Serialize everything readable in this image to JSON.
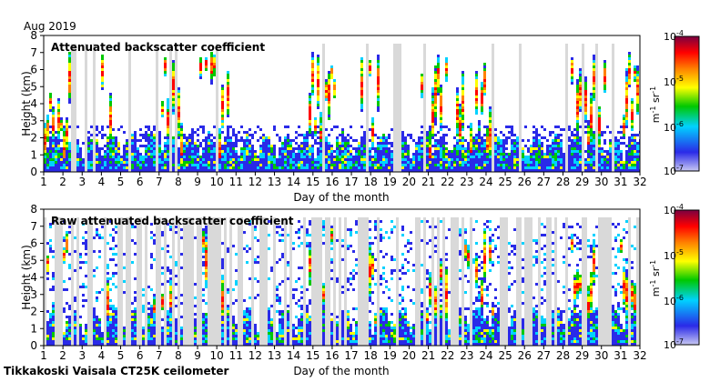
{
  "period_label": "Aug 2019",
  "footer": "Tikkakoski Vaisala CT25K ceilometer",
  "colors": {
    "no_data": "#d9d9d9",
    "colormap": [
      "#c8c8f2",
      "#2a2ae8",
      "#00d2ff",
      "#00c800",
      "#ffff00",
      "#ff8000",
      "#ff0000",
      "#7a0040"
    ]
  },
  "chart_data": [
    {
      "type": "heatmap",
      "title": "Attenuated backscatter coefficient",
      "xlabel": "Day of the month",
      "ylabel": "Height (km)",
      "x_ticks": [
        "1",
        "2",
        "3",
        "4",
        "5",
        "6",
        "7",
        "8",
        "9",
        "10",
        "11",
        "12",
        "13",
        "14",
        "15",
        "16",
        "17",
        "18",
        "19",
        "20",
        "21",
        "22",
        "23",
        "24",
        "25",
        "26",
        "27",
        "28",
        "29",
        "30",
        "31",
        "32"
      ],
      "y_ticks": [
        "0",
        "1",
        "2",
        "3",
        "4",
        "5",
        "6",
        "7",
        "8"
      ],
      "xlim": [
        1,
        32
      ],
      "ylim": [
        0,
        8
      ],
      "colorbar": {
        "scale": "log",
        "range": [
          1e-07,
          0.0001
        ],
        "tick_labels": [
          "10^-7",
          "10^-6",
          "10^-5",
          "10^-4"
        ],
        "unit_label": "m^-1 sr^-1"
      }
    },
    {
      "type": "heatmap",
      "title": "Raw attenuated backscatter coefficient",
      "xlabel": "Day of the month",
      "ylabel": "Height (km)",
      "x_ticks": [
        "1",
        "2",
        "3",
        "4",
        "5",
        "6",
        "7",
        "8",
        "9",
        "10",
        "11",
        "12",
        "13",
        "14",
        "15",
        "16",
        "17",
        "18",
        "19",
        "20",
        "21",
        "22",
        "23",
        "24",
        "25",
        "26",
        "27",
        "28",
        "29",
        "30",
        "31",
        "32"
      ],
      "y_ticks": [
        "0",
        "1",
        "2",
        "3",
        "4",
        "5",
        "6",
        "7",
        "8"
      ],
      "xlim": [
        1,
        32
      ],
      "ylim": [
        0,
        8
      ],
      "colorbar": {
        "scale": "log",
        "range": [
          1e-07,
          0.0001
        ],
        "tick_labels": [
          "10^-7",
          "10^-6",
          "10^-5",
          "10^-4"
        ],
        "unit_label": "m^-1 sr^-1"
      }
    }
  ]
}
